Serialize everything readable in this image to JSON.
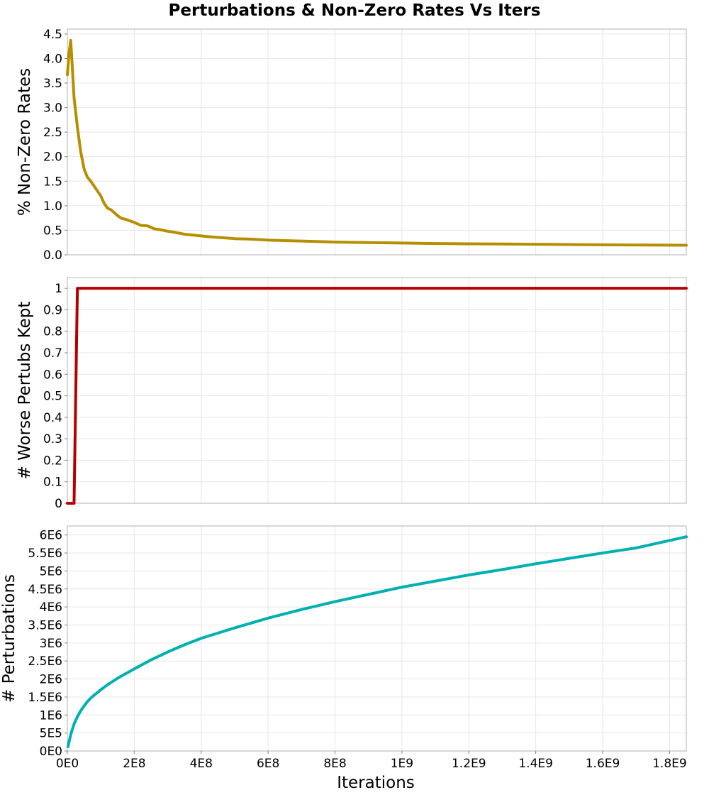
{
  "chart_data": {
    "type": "line",
    "title": "Perturbations & Non-Zero Rates Vs Iters",
    "xlabel": "Iterations",
    "xlim": [
      0,
      1850000000
    ],
    "x_ticks": [
      {
        "v": 0,
        "label": "0E0"
      },
      {
        "v": 200000000,
        "label": "2E8"
      },
      {
        "v": 400000000,
        "label": "4E8"
      },
      {
        "v": 600000000,
        "label": "6E8"
      },
      {
        "v": 800000000,
        "label": "8E8"
      },
      {
        "v": 1000000000,
        "label": "1E9"
      },
      {
        "v": 1200000000,
        "label": "1.2E9"
      },
      {
        "v": 1400000000,
        "label": "1.4E9"
      },
      {
        "v": 1600000000,
        "label": "1.6E9"
      },
      {
        "v": 1800000000,
        "label": "1.8E9"
      }
    ],
    "panels": [
      {
        "ylabel": "% Non-Zero Rates",
        "ylim": [
          0,
          4.6
        ],
        "color": "#b58f00",
        "y_ticks": [
          {
            "v": 0,
            "label": "0.0"
          },
          {
            "v": 0.5,
            "label": "0.5"
          },
          {
            "v": 1,
            "label": "1.0"
          },
          {
            "v": 1.5,
            "label": "1.5"
          },
          {
            "v": 2,
            "label": "2.0"
          },
          {
            "v": 2.5,
            "label": "2.5"
          },
          {
            "v": 3,
            "label": "3.0"
          },
          {
            "v": 3.5,
            "label": "3.5"
          },
          {
            "v": 4,
            "label": "4.0"
          },
          {
            "v": 4.5,
            "label": "4.5"
          }
        ],
        "points": [
          [
            0,
            3.67
          ],
          [
            5000000,
            4.1
          ],
          [
            10000000,
            4.37
          ],
          [
            15000000,
            3.8
          ],
          [
            20000000,
            3.2
          ],
          [
            30000000,
            2.6
          ],
          [
            40000000,
            2.1
          ],
          [
            50000000,
            1.75
          ],
          [
            60000000,
            1.58
          ],
          [
            70000000,
            1.5
          ],
          [
            80000000,
            1.4
          ],
          [
            90000000,
            1.3
          ],
          [
            100000000,
            1.2
          ],
          [
            110000000,
            1.05
          ],
          [
            120000000,
            0.95
          ],
          [
            130000000,
            0.92
          ],
          [
            140000000,
            0.86
          ],
          [
            150000000,
            0.8
          ],
          [
            160000000,
            0.75
          ],
          [
            180000000,
            0.71
          ],
          [
            200000000,
            0.66
          ],
          [
            220000000,
            0.6
          ],
          [
            240000000,
            0.59
          ],
          [
            260000000,
            0.53
          ],
          [
            280000000,
            0.51
          ],
          [
            300000000,
            0.48
          ],
          [
            320000000,
            0.46
          ],
          [
            350000000,
            0.42
          ],
          [
            380000000,
            0.4
          ],
          [
            420000000,
            0.37
          ],
          [
            460000000,
            0.35
          ],
          [
            500000000,
            0.33
          ],
          [
            550000000,
            0.32
          ],
          [
            600000000,
            0.3
          ],
          [
            650000000,
            0.29
          ],
          [
            700000000,
            0.28
          ],
          [
            800000000,
            0.26
          ],
          [
            900000000,
            0.25
          ],
          [
            1000000000,
            0.24
          ],
          [
            1100000000,
            0.23
          ],
          [
            1200000000,
            0.225
          ],
          [
            1300000000,
            0.22
          ],
          [
            1400000000,
            0.215
          ],
          [
            1500000000,
            0.21
          ],
          [
            1600000000,
            0.205
          ],
          [
            1700000000,
            0.2
          ],
          [
            1850000000,
            0.195
          ]
        ]
      },
      {
        "ylabel": "# Worse Pertubs Kept",
        "ylim": [
          0,
          1.05
        ],
        "color": "#b50000",
        "y_ticks": [
          {
            "v": 0,
            "label": "0"
          },
          {
            "v": 0.1,
            "label": "0.1"
          },
          {
            "v": 0.2,
            "label": "0.2"
          },
          {
            "v": 0.3,
            "label": "0.3"
          },
          {
            "v": 0.4,
            "label": "0.4"
          },
          {
            "v": 0.5,
            "label": "0.5"
          },
          {
            "v": 0.6,
            "label": "0.6"
          },
          {
            "v": 0.7,
            "label": "0.7"
          },
          {
            "v": 0.8,
            "label": "0.8"
          },
          {
            "v": 0.9,
            "label": "0.9"
          },
          {
            "v": 1,
            "label": "1"
          }
        ],
        "points": [
          [
            0,
            0
          ],
          [
            20000000,
            0
          ],
          [
            30000000,
            1
          ],
          [
            1850000000,
            1
          ]
        ]
      },
      {
        "ylabel": "# Perturbations",
        "ylim": [
          0,
          6250000
        ],
        "color": "#00b0b0",
        "y_ticks": [
          {
            "v": 0,
            "label": "0E0"
          },
          {
            "v": 500000,
            "label": "5E5"
          },
          {
            "v": 1000000,
            "label": "1E6"
          },
          {
            "v": 1500000,
            "label": "1.5E6"
          },
          {
            "v": 2000000,
            "label": "2E6"
          },
          {
            "v": 2500000,
            "label": "2.5E6"
          },
          {
            "v": 3000000,
            "label": "3E6"
          },
          {
            "v": 3500000,
            "label": "3.5E6"
          },
          {
            "v": 4000000,
            "label": "4E6"
          },
          {
            "v": 4500000,
            "label": "4.5E6"
          },
          {
            "v": 5000000,
            "label": "5E6"
          },
          {
            "v": 5500000,
            "label": "5.5E6"
          },
          {
            "v": 6000000,
            "label": "6E6"
          }
        ],
        "points": [
          [
            2000000,
            120000
          ],
          [
            5000000,
            250000
          ],
          [
            10000000,
            450000
          ],
          [
            20000000,
            750000
          ],
          [
            30000000,
            950000
          ],
          [
            40000000,
            1120000
          ],
          [
            50000000,
            1250000
          ],
          [
            60000000,
            1370000
          ],
          [
            70000000,
            1470000
          ],
          [
            80000000,
            1550000
          ],
          [
            100000000,
            1700000
          ],
          [
            120000000,
            1840000
          ],
          [
            150000000,
            2020000
          ],
          [
            200000000,
            2280000
          ],
          [
            250000000,
            2530000
          ],
          [
            300000000,
            2750000
          ],
          [
            350000000,
            2950000
          ],
          [
            400000000,
            3130000
          ],
          [
            500000000,
            3420000
          ],
          [
            600000000,
            3690000
          ],
          [
            700000000,
            3930000
          ],
          [
            800000000,
            4150000
          ],
          [
            900000000,
            4350000
          ],
          [
            1000000000,
            4550000
          ],
          [
            1100000000,
            4720000
          ],
          [
            1200000000,
            4890000
          ],
          [
            1300000000,
            5040000
          ],
          [
            1400000000,
            5200000
          ],
          [
            1500000000,
            5350000
          ],
          [
            1600000000,
            5500000
          ],
          [
            1700000000,
            5640000
          ],
          [
            1850000000,
            5950000
          ]
        ]
      }
    ]
  }
}
